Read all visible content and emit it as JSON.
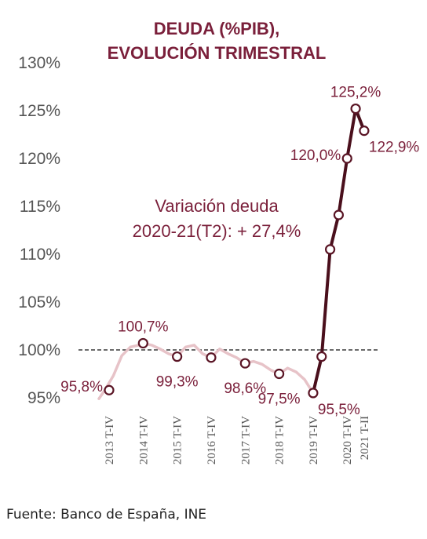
{
  "chart_data": {
    "type": "line",
    "title_lines": [
      "DEUDA (%PIB),",
      "EVOLUCIÓN TRIMESTRAL"
    ],
    "y_ticks": [
      "130%",
      "125%",
      "120%",
      "115%",
      "110%",
      "105%",
      "100%",
      "95%"
    ],
    "ylim": [
      95,
      130
    ],
    "x_ticks": [
      "2013 T-IV",
      "2014 T-IV",
      "2015 T-IV",
      "2016 T-IV",
      "2017 T-IV",
      "2018 T-IV",
      "2019 T-IV",
      "2020 T-IV",
      "2021 T-II"
    ],
    "x_tick_quarters": [
      0,
      4,
      8,
      12,
      16,
      20,
      24,
      28,
      30
    ],
    "reference_line": 100,
    "series": [
      {
        "style": "light",
        "color": "#e7c3c8",
        "points": [
          [
            -1.2,
            94.9
          ],
          [
            -0.5,
            95.8
          ],
          [
            0.5,
            97.3
          ],
          [
            1.5,
            99.4
          ],
          [
            2.5,
            100.3
          ],
          [
            3.5,
            100.5
          ],
          [
            4,
            100.7
          ],
          [
            5,
            100.5
          ],
          [
            6,
            100.1
          ],
          [
            7,
            99.6
          ],
          [
            8,
            99.3
          ],
          [
            9,
            100.3
          ],
          [
            10,
            100.5
          ],
          [
            11,
            99.6
          ],
          [
            12,
            99.2
          ],
          [
            13,
            100.1
          ],
          [
            14,
            99.6
          ],
          [
            15,
            99.2
          ],
          [
            16,
            98.6
          ],
          [
            17,
            98.8
          ],
          [
            18,
            98.5
          ],
          [
            19,
            97.9
          ],
          [
            20,
            97.5
          ],
          [
            21,
            98.1
          ],
          [
            22,
            97.7
          ],
          [
            23,
            96.9
          ],
          [
            24,
            95.5
          ]
        ]
      },
      {
        "style": "dark",
        "color": "#4a0f1c",
        "points": [
          [
            24,
            95.5
          ],
          [
            25,
            99.3
          ],
          [
            26,
            110.5
          ],
          [
            27,
            114.1
          ],
          [
            28,
            120.0
          ],
          [
            29,
            125.2
          ],
          [
            30,
            122.9
          ]
        ]
      }
    ],
    "markers": [
      [
        0,
        95.8
      ],
      [
        4,
        100.7
      ],
      [
        8,
        99.3
      ],
      [
        12,
        99.2
      ],
      [
        16,
        98.6
      ],
      [
        20,
        97.5
      ],
      [
        24,
        95.5
      ],
      [
        25,
        99.3
      ],
      [
        26,
        110.5
      ],
      [
        27,
        114.1
      ],
      [
        28,
        120.0
      ],
      [
        29,
        125.2
      ],
      [
        30,
        122.9
      ]
    ],
    "data_labels": [
      {
        "text": "95,8%",
        "q": 0,
        "v": 95.8,
        "pos": "left"
      },
      {
        "text": "100,7%",
        "q": 4,
        "v": 100.7,
        "pos": "above"
      },
      {
        "text": "99,3%",
        "q": 8,
        "v": 99.3,
        "pos": "below"
      },
      {
        "text": "98,6%",
        "q": 16,
        "v": 98.6,
        "pos": "below"
      },
      {
        "text": "97,5%",
        "q": 20,
        "v": 97.5,
        "pos": "below"
      },
      {
        "text": "95,5%",
        "q": 24,
        "v": 95.5,
        "pos": "below-right"
      },
      {
        "text": "120,0%",
        "q": 28,
        "v": 120.0,
        "pos": "left"
      },
      {
        "text": "125,2%",
        "q": 29,
        "v": 125.2,
        "pos": "above"
      },
      {
        "text": "122,9%",
        "q": 30,
        "v": 122.9,
        "pos": "below-right"
      }
    ],
    "annotation_lines": [
      "Variación deuda",
      "2020-21(T2): + 27,4%"
    ],
    "grid": false,
    "legend": "none"
  },
  "source": "Fuente: Banco de España, INE"
}
